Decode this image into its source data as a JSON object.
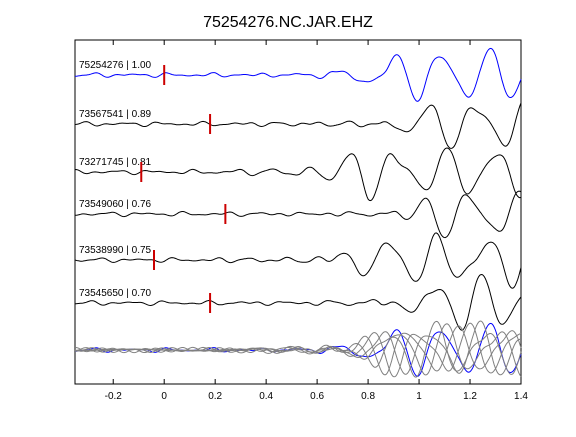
{
  "chart_data": {
    "type": "line",
    "title": "75254276.NC.JAR.EHZ",
    "xlabel": "",
    "ylabel": "",
    "xlim": [
      -0.35,
      1.4
    ],
    "x_ticks": [
      -0.2,
      0,
      0.2,
      0.4,
      0.6,
      0.8,
      1,
      1.2,
      1.4
    ],
    "x_tick_labels": [
      "-0.2",
      "0",
      "0.2",
      "0.4",
      "0.6",
      "0.8",
      "1",
      "1.2",
      "1.4"
    ],
    "grid": false,
    "legend": "none",
    "colors": {
      "reference": "#0000ff",
      "trace": "#000000",
      "overlay": "#808080",
      "pick": "#cc0000",
      "axes": "#000000"
    },
    "traces": [
      {
        "label": "75254276 | 1.00",
        "pick": 0.0,
        "reference": true
      },
      {
        "label": "73567541 | 0.89",
        "pick": 0.18
      },
      {
        "label": "73271745 | 0.81",
        "pick": -0.09
      },
      {
        "label": "73549060 | 0.76",
        "pick": 0.24
      },
      {
        "label": "73538990 | 0.75",
        "pick": -0.04
      },
      {
        "label": "73545650 | 0.70",
        "pick": 0.18
      }
    ],
    "stack": {
      "note": "",
      "count": 6
    }
  }
}
